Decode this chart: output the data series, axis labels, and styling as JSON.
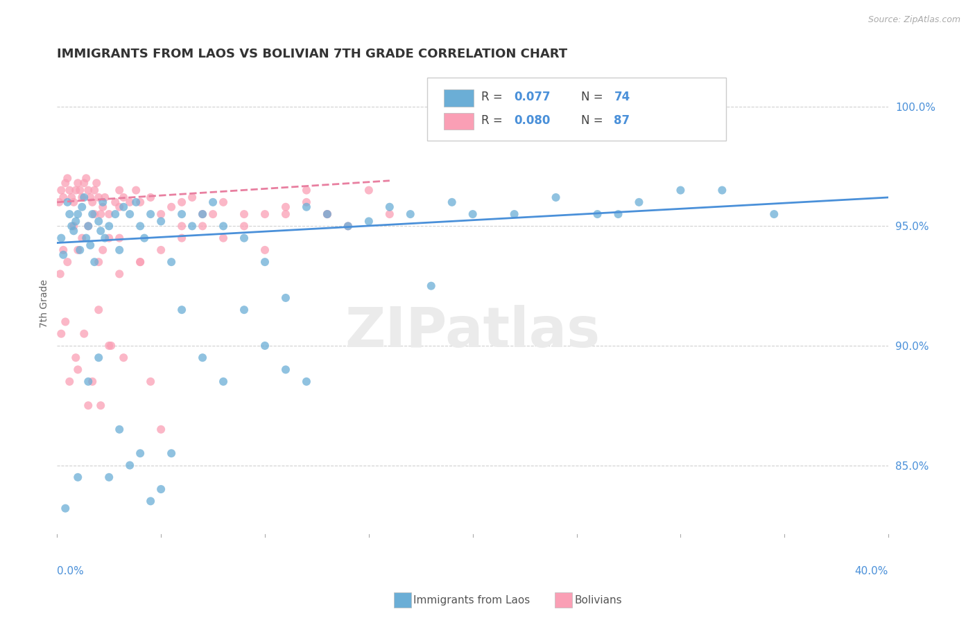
{
  "title": "IMMIGRANTS FROM LAOS VS BOLIVIAN 7TH GRADE CORRELATION CHART",
  "source_text": "Source: ZipAtlas.com",
  "ylabel": "7th Grade",
  "legend_label1": "Immigrants from Laos",
  "legend_label2": "Bolivians",
  "watermark": "ZIPatlas",
  "xlim": [
    0.0,
    40.0
  ],
  "ylim": [
    82.0,
    101.5
  ],
  "yticks": [
    85.0,
    90.0,
    95.0,
    100.0
  ],
  "ytick_labels": [
    "85.0%",
    "90.0%",
    "95.0%",
    "100.0%"
  ],
  "color_blue": "#6baed6",
  "color_pink": "#fa9fb5",
  "trendline_blue": "#4a90d9",
  "trendline_pink": "#e87fa0",
  "blue_scatter_x": [
    0.2,
    0.3,
    0.5,
    0.6,
    0.7,
    0.8,
    0.9,
    1.0,
    1.1,
    1.2,
    1.3,
    1.4,
    1.5,
    1.6,
    1.7,
    1.8,
    2.0,
    2.1,
    2.2,
    2.3,
    2.5,
    2.8,
    3.0,
    3.2,
    3.5,
    3.8,
    4.0,
    4.2,
    4.5,
    5.0,
    5.5,
    6.0,
    6.5,
    7.0,
    7.5,
    8.0,
    9.0,
    10.0,
    11.0,
    12.0,
    13.0,
    14.0,
    15.0,
    16.0,
    17.0,
    18.0,
    19.0,
    20.0,
    22.0,
    24.0,
    26.0,
    28.0,
    30.0,
    32.0,
    34.5,
    27.0,
    0.4,
    1.0,
    1.5,
    2.0,
    2.5,
    3.0,
    3.5,
    4.0,
    4.5,
    5.0,
    5.5,
    6.0,
    7.0,
    8.0,
    9.0,
    10.0,
    11.0,
    12.0
  ],
  "blue_scatter_y": [
    94.5,
    93.8,
    96.0,
    95.5,
    95.0,
    94.8,
    95.2,
    95.5,
    94.0,
    95.8,
    96.2,
    94.5,
    95.0,
    94.2,
    95.5,
    93.5,
    95.2,
    94.8,
    96.0,
    94.5,
    95.0,
    95.5,
    94.0,
    95.8,
    95.5,
    96.0,
    95.0,
    94.5,
    95.5,
    95.2,
    93.5,
    95.5,
    95.0,
    95.5,
    96.0,
    95.0,
    94.5,
    93.5,
    92.0,
    95.8,
    95.5,
    95.0,
    95.2,
    95.8,
    95.5,
    92.5,
    96.0,
    95.5,
    95.5,
    96.2,
    95.5,
    96.0,
    96.5,
    96.5,
    95.5,
    95.5,
    83.2,
    84.5,
    88.5,
    89.5,
    84.5,
    86.5,
    85.0,
    85.5,
    83.5,
    84.0,
    85.5,
    91.5,
    89.5,
    88.5,
    91.5,
    90.0,
    89.0,
    88.5
  ],
  "pink_scatter_x": [
    0.1,
    0.2,
    0.3,
    0.4,
    0.5,
    0.6,
    0.7,
    0.8,
    0.9,
    1.0,
    1.1,
    1.2,
    1.3,
    1.4,
    1.5,
    1.6,
    1.7,
    1.8,
    1.9,
    2.0,
    2.1,
    2.2,
    2.3,
    2.5,
    2.8,
    3.0,
    3.2,
    3.5,
    3.8,
    4.0,
    4.5,
    5.0,
    5.5,
    6.0,
    6.5,
    7.0,
    7.5,
    8.0,
    9.0,
    10.0,
    11.0,
    12.0,
    13.0,
    14.0,
    15.0,
    16.0,
    3.0,
    4.0,
    5.0,
    6.0,
    7.0,
    8.0,
    9.0,
    10.0,
    11.0,
    12.0,
    13.0,
    0.5,
    1.0,
    1.5,
    2.0,
    2.5,
    3.0,
    0.3,
    0.8,
    1.2,
    1.8,
    2.2,
    3.0,
    4.0,
    5.0,
    0.2,
    0.6,
    1.0,
    1.5,
    2.0,
    2.5,
    0.4,
    0.9,
    1.3,
    1.7,
    2.1,
    2.6,
    3.2,
    4.5,
    6.0,
    0.15
  ],
  "pink_scatter_y": [
    96.0,
    96.5,
    96.2,
    96.8,
    97.0,
    96.5,
    96.2,
    96.0,
    96.5,
    96.8,
    96.5,
    96.2,
    96.8,
    97.0,
    96.5,
    96.2,
    96.0,
    96.5,
    96.8,
    96.2,
    95.5,
    95.8,
    96.2,
    95.5,
    96.0,
    95.8,
    96.2,
    96.0,
    96.5,
    96.0,
    96.2,
    95.5,
    95.8,
    96.0,
    96.2,
    95.0,
    95.5,
    96.0,
    95.0,
    95.5,
    95.8,
    96.0,
    95.5,
    95.0,
    96.5,
    95.5,
    94.5,
    93.5,
    94.0,
    95.0,
    95.5,
    94.5,
    95.5,
    94.0,
    95.5,
    96.5,
    95.5,
    93.5,
    94.0,
    95.0,
    93.5,
    94.5,
    96.5,
    94.0,
    95.0,
    94.5,
    95.5,
    94.0,
    93.0,
    93.5,
    86.5,
    90.5,
    88.5,
    89.0,
    87.5,
    91.5,
    90.0,
    91.0,
    89.5,
    90.5,
    88.5,
    87.5,
    90.0,
    89.5,
    88.5,
    94.5,
    93.0
  ],
  "blue_trend_x": [
    0.0,
    40.0
  ],
  "blue_trend_y": [
    94.3,
    96.2
  ],
  "pink_trend_x": [
    0.0,
    16.0
  ],
  "pink_trend_y": [
    96.0,
    96.9
  ]
}
